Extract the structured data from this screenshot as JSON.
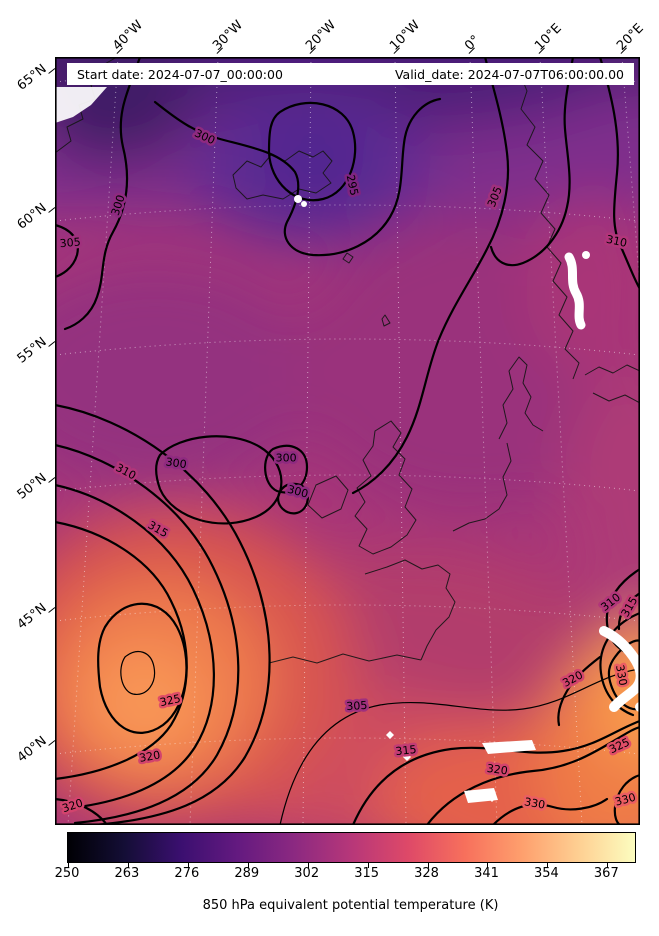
{
  "map": {
    "start_date_label": "Start date: 2024-07-07_00:00:00",
    "valid_date_label": "Valid_date: 2024-07-07T06:00:00.00"
  },
  "chart_data": {
    "type": "heatmap",
    "subtype": "filled contour map with labeled contour lines and coastlines",
    "region": "North Atlantic / Western Europe",
    "annotations": {
      "start_date": "Start date: 2024-07-07_00:00:00",
      "valid_date": "Valid_date: 2024-07-07T06:00:00.00"
    },
    "x_axis": {
      "label": "longitude",
      "ticks": [
        "40°W",
        "30°W",
        "20°W",
        "10°W",
        "0°",
        "10°E",
        "20°E"
      ]
    },
    "y_axis": {
      "label": "latitude",
      "ticks": [
        "65°N",
        "60°N",
        "55°N",
        "50°N",
        "45°N",
        "40°N"
      ]
    },
    "colorbar": {
      "label": "850 hPa equivalent potential temperature (K)",
      "ticks": [
        250,
        263,
        276,
        289,
        302,
        315,
        328,
        341,
        354,
        367
      ],
      "vmin": 250,
      "vmax": 373,
      "colormap": "magma",
      "colors": [
        "#000004",
        "#140e36",
        "#3b0f70",
        "#641a80",
        "#8c2981",
        "#b73779",
        "#de4968",
        "#f7705c",
        "#fe9f6d",
        "#fecf92",
        "#fcfdbf"
      ]
    },
    "contour_levels": [
      295,
      300,
      305,
      310,
      315,
      320,
      325,
      330
    ],
    "contour_labels": [
      {
        "value": 295,
        "x": 0.508,
        "y": 0.167,
        "rot": 78
      },
      {
        "value": 300,
        "x": 0.256,
        "y": 0.104,
        "rot": 25
      },
      {
        "value": 300,
        "x": 0.108,
        "y": 0.193,
        "rot": -72
      },
      {
        "value": 305,
        "x": 0.026,
        "y": 0.242,
        "rot": -5
      },
      {
        "value": 305,
        "x": 0.752,
        "y": 0.182,
        "rot": -68
      },
      {
        "value": 310,
        "x": 0.96,
        "y": 0.24,
        "rot": 12
      },
      {
        "value": 300,
        "x": 0.207,
        "y": 0.529,
        "rot": 8
      },
      {
        "value": 300,
        "x": 0.395,
        "y": 0.522,
        "rot": 0
      },
      {
        "value": 300,
        "x": 0.415,
        "y": 0.566,
        "rot": 15
      },
      {
        "value": 310,
        "x": 0.121,
        "y": 0.54,
        "rot": 28
      },
      {
        "value": 315,
        "x": 0.176,
        "y": 0.615,
        "rot": 30
      },
      {
        "value": 325,
        "x": 0.197,
        "y": 0.838,
        "rot": -12
      },
      {
        "value": 320,
        "x": 0.162,
        "y": 0.911,
        "rot": -10
      },
      {
        "value": 320,
        "x": 0.03,
        "y": 0.975,
        "rot": -18
      },
      {
        "value": 305,
        "x": 0.516,
        "y": 0.845,
        "rot": -4
      },
      {
        "value": 315,
        "x": 0.6,
        "y": 0.903,
        "rot": -6
      },
      {
        "value": 320,
        "x": 0.756,
        "y": 0.928,
        "rot": 8
      },
      {
        "value": 330,
        "x": 0.82,
        "y": 0.972,
        "rot": 10
      },
      {
        "value": 310,
        "x": 0.95,
        "y": 0.71,
        "rot": -38
      },
      {
        "value": 315,
        "x": 0.982,
        "y": 0.716,
        "rot": -60
      },
      {
        "value": 320,
        "x": 0.885,
        "y": 0.81,
        "rot": -28
      },
      {
        "value": 330,
        "x": 0.968,
        "y": 0.805,
        "rot": 80
      },
      {
        "value": 325,
        "x": 0.965,
        "y": 0.897,
        "rot": -25
      },
      {
        "value": 330,
        "x": 0.975,
        "y": 0.967,
        "rot": -15
      }
    ],
    "missing_data_color": "#ffffff",
    "grid": true,
    "legend_position": "bottom-colorbar"
  }
}
